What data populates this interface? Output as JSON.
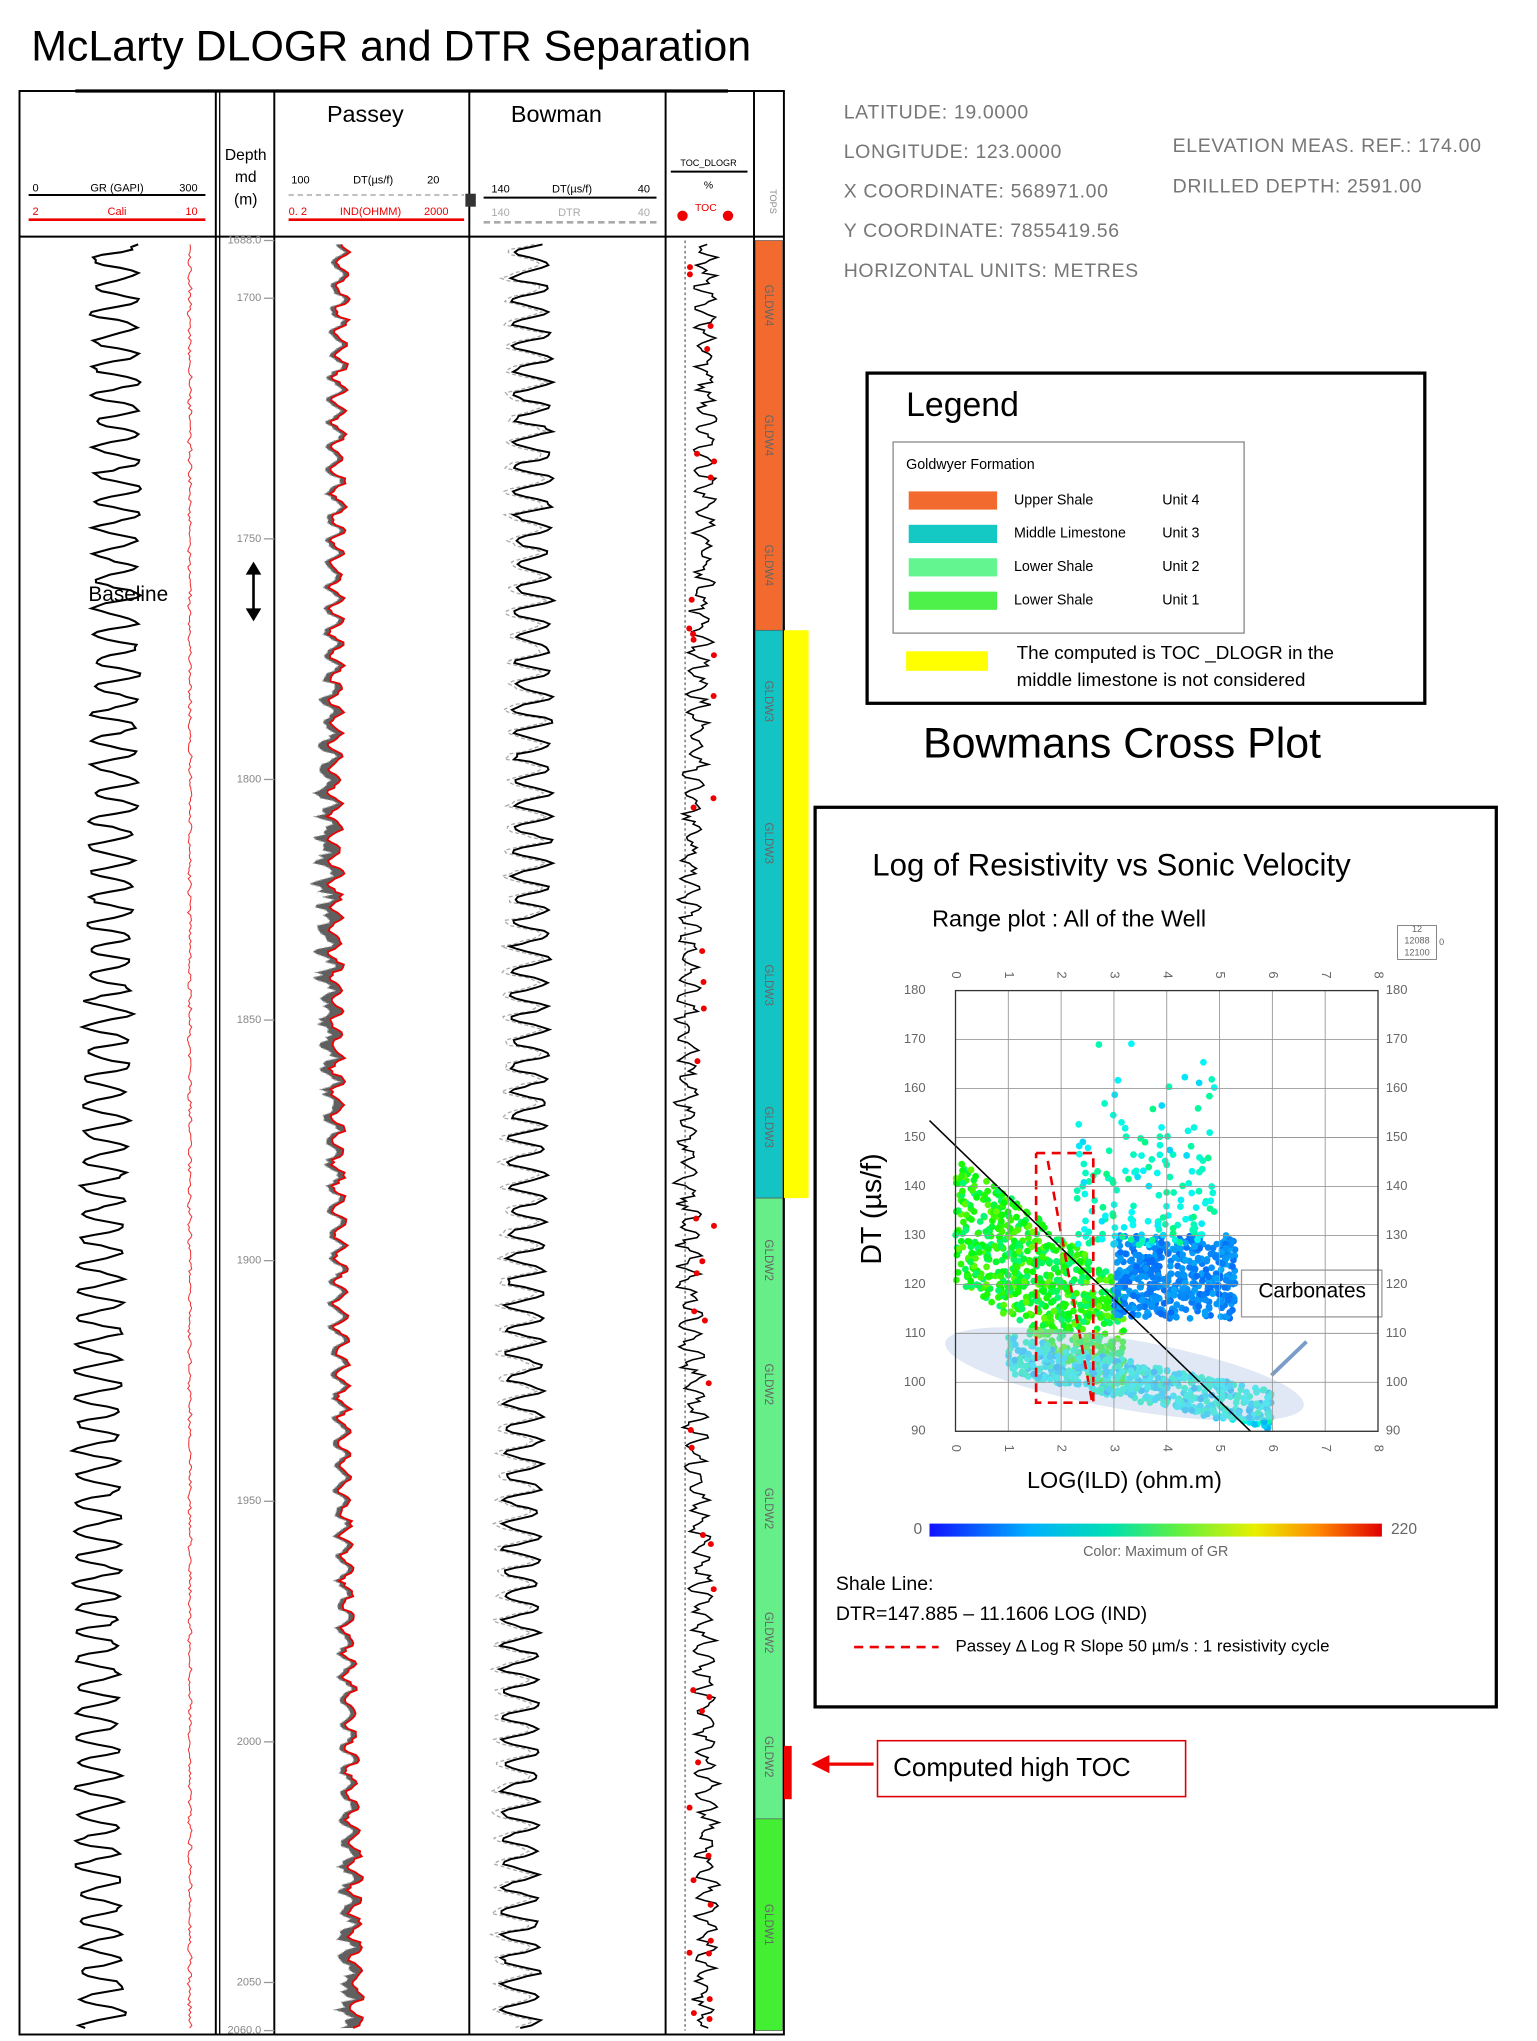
{
  "title": "McLarty DLOGR and DTR Separation",
  "tracks": {
    "gr": {
      "gr_min": "0",
      "gr_name": "GR (GAPI)",
      "gr_max": "300",
      "cali_min": "2",
      "cali_name": "Cali",
      "cali_max": "10"
    },
    "depth": {
      "header": [
        "Depth",
        "md",
        "(m)"
      ],
      "ylim": [
        1688,
        2060
      ],
      "yticks": [
        {
          "value": 1688,
          "label": "1688.0"
        },
        1700,
        1750,
        1800,
        1850,
        1900,
        1950,
        2000,
        2050,
        {
          "value": 2060,
          "label": "2060.0"
        }
      ]
    },
    "passey": {
      "title": "Passey",
      "dt_min": "100",
      "dt_name": "DT(µs/f)",
      "dt_max": "20",
      "ind_min": "0. 2",
      "ind_name": "IND(OHMM)",
      "ind_max": "2000"
    },
    "bowman": {
      "title": "Bowman",
      "dt_min": "140",
      "dt_name": "DT(µs/f)",
      "dt_max": "40",
      "dtr_min": "140",
      "dtr_name": "DTR",
      "dtr_max": "40"
    },
    "toc": {
      "name": "TOC_DLOGR",
      "unit": "%",
      "curve": "TOC"
    },
    "tops": {
      "header": "TOPS",
      "zones": [
        {
          "label": "GLDW4",
          "top": 1688,
          "base": 1769,
          "color": "#f26a2e"
        },
        {
          "label": "GLDW3",
          "top": 1769,
          "base": 1887,
          "color": "#14c4c4"
        },
        {
          "label": "GLDW2",
          "top": 1887,
          "base": 2016,
          "color": "#66ee88"
        },
        {
          "label": "GLDW1",
          "top": 2016,
          "base": 2060,
          "color": "#44ee33"
        }
      ]
    }
  },
  "annotations": {
    "baseline": "Baseline",
    "high_toc": "Computed high TOC",
    "carbonates": "Carbonates"
  },
  "well_info": {
    "left": [
      "LATITUDE: 19.0000",
      "LONGITUDE: 123.0000",
      "X COORDINATE: 568971.00",
      "Y COORDINATE: 7855419.56",
      "HORIZONTAL UNITS: METRES"
    ],
    "right": [
      "ELEVATION MEAS. REF.: 174.00",
      "DRILLED DEPTH: 2591.00"
    ]
  },
  "legend": {
    "title": "Legend",
    "group": "Goldwyer Formation",
    "items": [
      {
        "name": "Upper Shale",
        "unit": "Unit 4",
        "color": "#f26a2e"
      },
      {
        "name": "Middle Limestone",
        "unit": "Unit 3",
        "color": "#14c8c4"
      },
      {
        "name": "Lower Shale",
        "unit": "Unit 2",
        "color": "#62f590"
      },
      {
        "name": "Lower Shale",
        "unit": "Unit 1",
        "color": "#4ef04a"
      }
    ],
    "note": {
      "color": "#ffff00",
      "lines": [
        "The computed is TOC _DLOGR in the",
        "middle limestone is not considered"
      ]
    }
  },
  "crossplot_heading": "Bowmans Cross Plot",
  "crossplot": {
    "title": "Log of Resistivity vs Sonic Velocity",
    "subtitle": "Range plot : All of the Well",
    "scale_box": [
      "12",
      "12088",
      "12100",
      "0"
    ],
    "xlabel": "LOG(ILD)  (ohm.m)",
    "ylabel": "DT (µs/f)",
    "xlim": [
      0,
      8
    ],
    "xticks": [
      0,
      1,
      2,
      3,
      4,
      5,
      6,
      7,
      8
    ],
    "ylim": [
      90,
      180
    ],
    "yticks": [
      90,
      100,
      110,
      120,
      130,
      140,
      150,
      160,
      170,
      180
    ],
    "colorbar": {
      "range": [
        0,
        220
      ],
      "label": "Color: Maximum of GR"
    },
    "shale_line": {
      "title": "Shale Line:",
      "equation": "DTR=147.885 – 11.1606 LOG (IND)"
    },
    "passey_note": "Passey Δ Log R Slope  50 µm/s : 1 resistivity cycle"
  }
}
